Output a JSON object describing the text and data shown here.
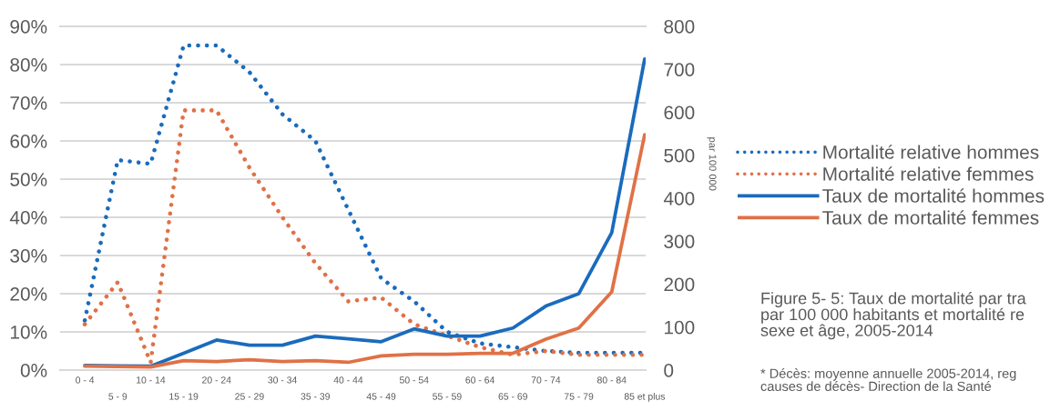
{
  "chart_data": {
    "type": "line",
    "title": "Figure 5- 5: Taux de mortalité par tra\npar 100 000 habitants et mortalité re\nsexe et âge, 2005-2014",
    "y2label": "par 100 000",
    "annotations": [
      "* Décès: moyenne annuelle 2005-2014, reg\ncauses de décès- Direction de la Santé"
    ],
    "categories": [
      "0 - 4",
      "5 - 9",
      "10 - 14",
      "15 - 19",
      "20 - 24",
      "25 - 29",
      "30 - 34",
      "35 - 39",
      "40 - 44",
      "45 - 49",
      "50 - 54",
      "55 - 59",
      "60 - 64",
      "65 - 69",
      "70 - 74",
      "75 - 79",
      "80 - 84",
      "85 et plus"
    ],
    "series": [
      {
        "name": "Mortalité relative hommes",
        "color": "#1a6bbd",
        "line_style": "dotted",
        "values": [
          13,
          55,
          54,
          85,
          85,
          78,
          67,
          60,
          42,
          24,
          18,
          10,
          7,
          6,
          5,
          4.5,
          4.5,
          4.5
        ]
      },
      {
        "name": "Mortalité relative femmes",
        "color": "#e07146",
        "line_style": "dotted",
        "values": [
          12,
          23,
          2,
          68,
          68,
          53,
          40,
          28,
          18,
          19,
          12,
          9,
          6,
          4,
          5,
          4,
          4,
          4
        ]
      },
      {
        "name": "Taux de mortalité hommes",
        "color": "#1a6bbd",
        "line_style": "solid",
        "axis": "y2",
        "values": [
          11,
          10,
          9,
          39,
          70,
          58,
          58,
          79,
          73,
          66,
          96,
          79,
          79,
          98,
          149,
          178,
          320,
          724
        ]
      },
      {
        "name": "Taux de mortalité femmes",
        "color": "#e07146",
        "line_style": "solid",
        "axis": "y2",
        "values": [
          9,
          8,
          7,
          22,
          20,
          24,
          20,
          22,
          18,
          33,
          37,
          37,
          39,
          39,
          72,
          98,
          182,
          548
        ]
      }
    ],
    "ylim": [
      0,
      90
    ],
    "yticks": [
      {
        "value": 0,
        "label": "0%"
      },
      {
        "value": 10,
        "label": "10%"
      },
      {
        "value": 20,
        "label": "20%"
      },
      {
        "value": 30,
        "label": "30%"
      },
      {
        "value": 40,
        "label": "40%"
      },
      {
        "value": 50,
        "label": "50%"
      },
      {
        "value": 60,
        "label": "60%"
      },
      {
        "value": 70,
        "label": "70%"
      },
      {
        "value": 80,
        "label": "80%"
      },
      {
        "value": 90,
        "label": "90%"
      }
    ],
    "y2lim": [
      0,
      800
    ],
    "y2ticks": [
      0,
      100,
      200,
      300,
      400,
      500,
      600,
      700,
      800
    ],
    "grid": "y",
    "legend": "right"
  }
}
